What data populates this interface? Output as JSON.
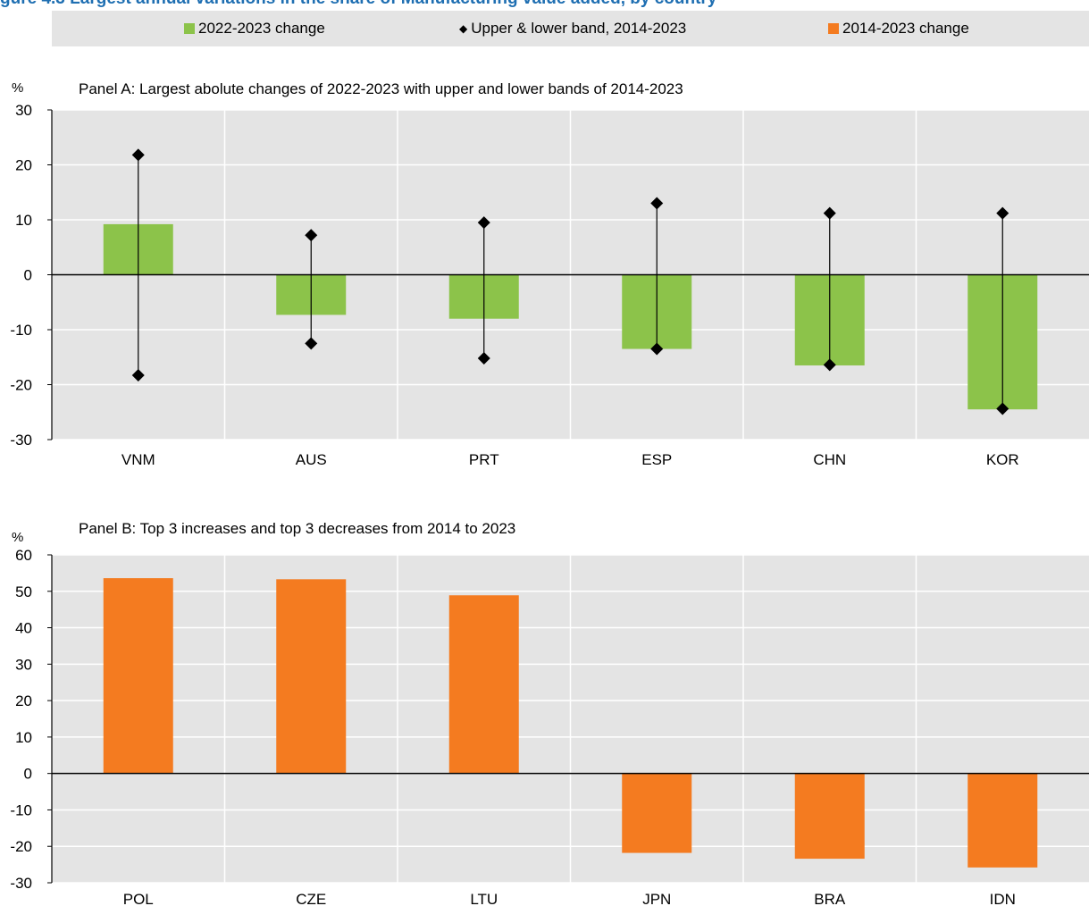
{
  "title": "gure 4.3 Largest annual variations in the share of Manufacturing value added, by country",
  "legend": {
    "item1": "2022-2023 change",
    "item2": "Upper & lower band, 2014-2023",
    "item3": "2014-2023 change",
    "marker": "◆"
  },
  "colors": {
    "green": "#8cc34a",
    "orange": "#f47b20",
    "panel_bg": "#e4e4e4",
    "grid": "#ffffff",
    "title": "#1f6fb2"
  },
  "chart_data": [
    {
      "type": "bar",
      "title": "Panel A: Largest abolute changes of 2022-2023 with upper and lower bands of 2014-2023",
      "ylabel": "%",
      "ylim": [
        -30,
        30
      ],
      "yticks": [
        30,
        20,
        10,
        0,
        -10,
        -20,
        -30
      ],
      "categories": [
        "VNM",
        "AUS",
        "PRT",
        "ESP",
        "CHN",
        "KOR"
      ],
      "series": [
        {
          "name": "2022-2023 change",
          "values": [
            9.2,
            -7.3,
            -8.0,
            -13.5,
            -16.5,
            -24.5
          ]
        },
        {
          "name": "Upper & lower band, 2014-2023",
          "upper": [
            21.8,
            7.2,
            9.5,
            13.0,
            11.2,
            11.2
          ],
          "lower": [
            -18.3,
            -12.5,
            -15.2,
            -13.5,
            -16.4,
            -24.4
          ]
        }
      ],
      "grid": true
    },
    {
      "type": "bar",
      "title": "Panel B: Top 3 increases and top 3 decreases from 2014 to 2023",
      "ylabel": "%",
      "ylim": [
        -30,
        60
      ],
      "yticks": [
        60,
        50,
        40,
        30,
        20,
        10,
        0,
        -10,
        -20,
        -30
      ],
      "categories": [
        "POL",
        "CZE",
        "LTU",
        "JPN",
        "BRA",
        "IDN"
      ],
      "series": [
        {
          "name": "2014-2023 change",
          "values": [
            53.6,
            53.3,
            48.9,
            -21.8,
            -23.4,
            -25.8
          ]
        }
      ],
      "grid": true
    }
  ]
}
